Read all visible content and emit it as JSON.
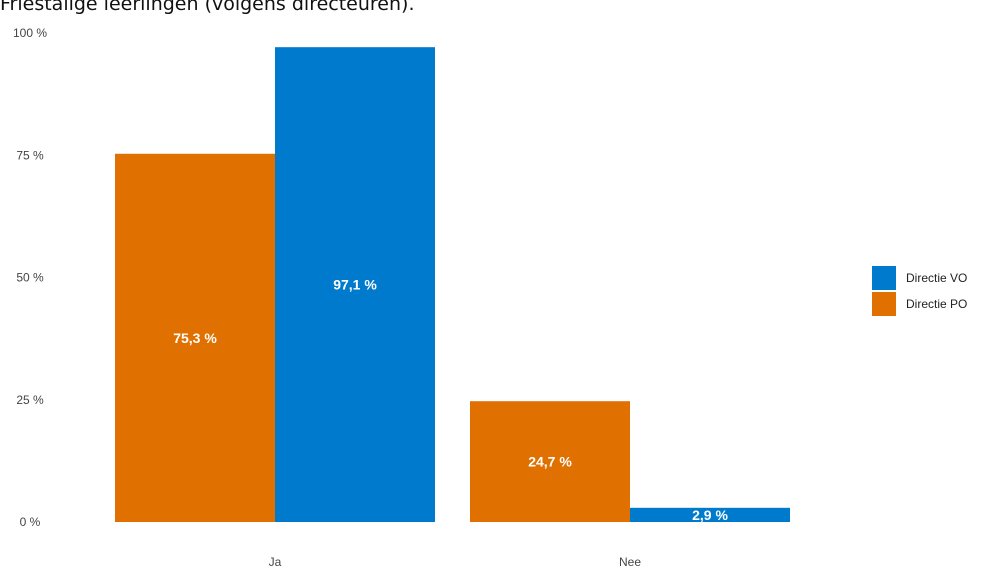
{
  "caption": "Friestalige leerlingen (volgens directeuren).",
  "chart_data": {
    "type": "bar",
    "title": "",
    "xlabel": "",
    "ylabel": "",
    "categories": [
      "Ja",
      "Nee"
    ],
    "ylim": [
      0,
      100
    ],
    "yticks": [
      0,
      25,
      50,
      75,
      100
    ],
    "ytick_labels": [
      "0 %",
      "25 %",
      "50 %",
      "75 %",
      "100 %"
    ],
    "grid": false,
    "legend_position": "right",
    "series": [
      {
        "name": "Directie PO",
        "color": "#E07000",
        "values": [
          75.3,
          24.7
        ],
        "labels": [
          "75,3 %",
          "24,7 %"
        ]
      },
      {
        "name": "Directie VO",
        "color": "#007ACC",
        "values": [
          97.1,
          2.9
        ],
        "labels": [
          "97,1 %",
          "2,9 %"
        ]
      }
    ],
    "legend": [
      {
        "name": "Directie VO",
        "color": "#007ACC"
      },
      {
        "name": "Directie PO",
        "color": "#E07000"
      }
    ]
  }
}
